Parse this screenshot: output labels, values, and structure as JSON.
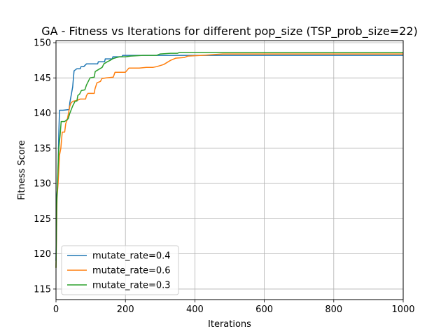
{
  "chart_data": {
    "type": "line",
    "title": "GA - Fitness vs Iterations for different pop_size (TSP_prob_size=22)",
    "xlabel": "Iterations",
    "ylabel": "Fitness Score",
    "xlim": [
      0,
      1000
    ],
    "ylim": [
      113.5,
      150.3
    ],
    "xticks": [
      0,
      200,
      400,
      600,
      800,
      1000
    ],
    "yticks": [
      115,
      120,
      125,
      130,
      135,
      140,
      145,
      150
    ],
    "grid": true,
    "legend_position": "lower-left",
    "series": [
      {
        "name": "mutate_rate=0.4",
        "color": "#1f77b4",
        "points": [
          [
            0,
            119
          ],
          [
            2,
            128
          ],
          [
            5,
            130
          ],
          [
            8,
            137
          ],
          [
            10,
            140.4
          ],
          [
            20,
            140.4
          ],
          [
            38,
            140.5
          ],
          [
            40,
            141.5
          ],
          [
            48,
            143.7
          ],
          [
            52,
            146
          ],
          [
            60,
            146.3
          ],
          [
            70,
            146.3
          ],
          [
            72,
            146.6
          ],
          [
            80,
            146.6
          ],
          [
            88,
            147
          ],
          [
            120,
            147
          ],
          [
            122,
            147.3
          ],
          [
            140,
            147.3
          ],
          [
            142,
            147.7
          ],
          [
            162,
            147.7
          ],
          [
            164,
            148
          ],
          [
            190,
            148
          ],
          [
            192,
            148.2
          ],
          [
            1000,
            148.2
          ]
        ]
      },
      {
        "name": "mutate_rate=0.6",
        "color": "#ff7f0e",
        "points": [
          [
            0,
            118
          ],
          [
            3,
            128
          ],
          [
            6,
            130
          ],
          [
            10,
            134
          ],
          [
            14,
            135
          ],
          [
            18,
            137.3
          ],
          [
            25,
            137.3
          ],
          [
            28,
            138.5
          ],
          [
            32,
            139
          ],
          [
            36,
            140
          ],
          [
            40,
            141
          ],
          [
            44,
            141.5
          ],
          [
            50,
            141.7
          ],
          [
            60,
            141.8
          ],
          [
            70,
            142
          ],
          [
            85,
            142
          ],
          [
            88,
            142.5
          ],
          [
            92,
            142.8
          ],
          [
            110,
            142.8
          ],
          [
            112,
            143.4
          ],
          [
            118,
            144.3
          ],
          [
            128,
            144.5
          ],
          [
            132,
            144.9
          ],
          [
            145,
            145
          ],
          [
            165,
            145.1
          ],
          [
            170,
            145.8
          ],
          [
            200,
            145.8
          ],
          [
            210,
            146.4
          ],
          [
            240,
            146.4
          ],
          [
            260,
            146.5
          ],
          [
            280,
            146.5
          ],
          [
            290,
            146.6
          ],
          [
            310,
            146.9
          ],
          [
            320,
            147.2
          ],
          [
            330,
            147.5
          ],
          [
            345,
            147.8
          ],
          [
            370,
            147.9
          ],
          [
            380,
            148.1
          ],
          [
            420,
            148.2
          ],
          [
            480,
            148.4
          ],
          [
            1000,
            148.4
          ]
        ]
      },
      {
        "name": "mutate_rate=0.3",
        "color": "#2ca02c",
        "points": [
          [
            0,
            118
          ],
          [
            2,
            127
          ],
          [
            5,
            131
          ],
          [
            8,
            135
          ],
          [
            12,
            137
          ],
          [
            15,
            138.8
          ],
          [
            25,
            138.8
          ],
          [
            30,
            139
          ],
          [
            35,
            139.2
          ],
          [
            40,
            140
          ],
          [
            48,
            141
          ],
          [
            55,
            141.7
          ],
          [
            60,
            141.7
          ],
          [
            63,
            142.5
          ],
          [
            68,
            142.7
          ],
          [
            73,
            143.2
          ],
          [
            83,
            143.3
          ],
          [
            88,
            144
          ],
          [
            93,
            144.5
          ],
          [
            98,
            145
          ],
          [
            110,
            145.1
          ],
          [
            113,
            145.9
          ],
          [
            123,
            146.2
          ],
          [
            133,
            146.5
          ],
          [
            138,
            147
          ],
          [
            148,
            147.3
          ],
          [
            156,
            147.5
          ],
          [
            163,
            147.7
          ],
          [
            168,
            147.8
          ],
          [
            175,
            147.9
          ],
          [
            183,
            148
          ],
          [
            200,
            148
          ],
          [
            215,
            148.1
          ],
          [
            250,
            148.2
          ],
          [
            290,
            148.2
          ],
          [
            300,
            148.4
          ],
          [
            330,
            148.5
          ],
          [
            350,
            148.5
          ],
          [
            355,
            148.6
          ],
          [
            1000,
            148.6
          ]
        ]
      }
    ]
  }
}
